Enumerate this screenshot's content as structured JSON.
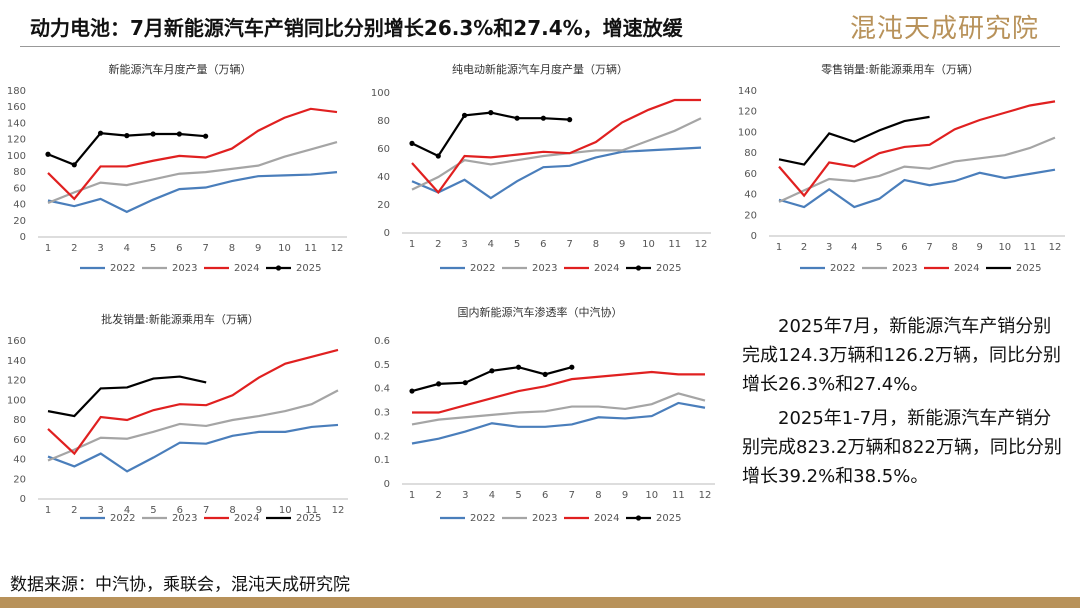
{
  "header": {
    "title": "动力电池：7月新能源汽车产销同比分别增长26.3%和27.4%，增速放缓",
    "logo": "混沌天成研究院"
  },
  "chart_data": [
    {
      "type": "line",
      "title": "新能源汽车月度产量（万辆）",
      "categories": [
        1,
        2,
        3,
        4,
        5,
        6,
        7,
        8,
        9,
        10,
        11,
        12
      ],
      "ylim": [
        0,
        180
      ],
      "yticks": [
        0,
        20,
        40,
        60,
        80,
        100,
        120,
        140,
        160,
        180
      ],
      "series": [
        {
          "name": "2022",
          "color": "#4a7ebb",
          "values": [
            45,
            38,
            47,
            31,
            46,
            59,
            61,
            69,
            75,
            76,
            77,
            80
          ]
        },
        {
          "name": "2023",
          "color": "#a5a5a5",
          "values": [
            42,
            55,
            67,
            64,
            71,
            78,
            80,
            84,
            88,
            99,
            108,
            117
          ]
        },
        {
          "name": "2024",
          "color": "#e02020",
          "values": [
            79,
            47,
            87,
            87,
            94,
            100,
            98,
            109,
            131,
            147,
            158,
            154
          ]
        },
        {
          "name": "2025",
          "color": "#000000",
          "markers": true,
          "values": [
            102,
            89,
            128,
            125,
            127,
            127,
            124.3,
            null,
            null,
            null,
            null,
            null
          ]
        }
      ]
    },
    {
      "type": "line",
      "title": "纯电动新能源汽车月度产量（万辆）",
      "categories": [
        1,
        2,
        3,
        4,
        5,
        6,
        7,
        8,
        9,
        10,
        11,
        12
      ],
      "ylim": [
        0,
        100
      ],
      "yticks": [
        0,
        20,
        40,
        60,
        80,
        100
      ],
      "series": [
        {
          "name": "2022",
          "color": "#4a7ebb",
          "values": [
            37,
            29,
            38,
            25,
            37,
            47,
            48,
            54,
            58,
            59,
            60,
            61
          ]
        },
        {
          "name": "2023",
          "color": "#a5a5a5",
          "values": [
            31,
            40,
            52,
            49,
            52,
            55,
            57,
            59,
            59,
            66,
            73,
            82
          ]
        },
        {
          "name": "2024",
          "color": "#e02020",
          "values": [
            50,
            29,
            55,
            54,
            56,
            58,
            57,
            65,
            79,
            88,
            95,
            95
          ]
        },
        {
          "name": "2025",
          "color": "#000000",
          "markers": true,
          "values": [
            64,
            55,
            84,
            86,
            82,
            82,
            81,
            null,
            null,
            null,
            null,
            null
          ]
        }
      ]
    },
    {
      "type": "line",
      "title": "零售销量:新能源乘用车（万辆）",
      "categories": [
        1,
        2,
        3,
        4,
        5,
        6,
        7,
        8,
        9,
        10,
        11,
        12
      ],
      "ylim": [
        0,
        140
      ],
      "yticks": [
        0,
        20,
        40,
        60,
        80,
        100,
        120,
        140
      ],
      "series": [
        {
          "name": "2022",
          "color": "#4a7ebb",
          "values": [
            35,
            28,
            45,
            28,
            36,
            54,
            49,
            53,
            61,
            56,
            60,
            64
          ]
        },
        {
          "name": "2023",
          "color": "#a5a5a5",
          "values": [
            33,
            44,
            55,
            53,
            58,
            67,
            65,
            72,
            75,
            78,
            85,
            95
          ]
        },
        {
          "name": "2024",
          "color": "#e02020",
          "values": [
            67,
            39,
            71,
            67,
            80,
            86,
            88,
            103,
            112,
            119,
            126,
            130
          ]
        },
        {
          "name": "2025",
          "color": "#000000",
          "values": [
            74,
            69,
            99,
            91,
            102,
            111,
            115,
            null,
            null,
            null,
            null,
            null
          ]
        }
      ]
    },
    {
      "type": "line",
      "title": "批发销量:新能源乘用车（万辆）",
      "categories": [
        1,
        2,
        3,
        4,
        5,
        6,
        7,
        8,
        9,
        10,
        11,
        12
      ],
      "ylim": [
        0,
        160
      ],
      "yticks": [
        0,
        20,
        40,
        60,
        80,
        100,
        120,
        140,
        160
      ],
      "series": [
        {
          "name": "2022",
          "color": "#4a7ebb",
          "values": [
            43,
            33,
            46,
            28,
            42,
            57,
            56,
            64,
            68,
            68,
            73,
            75
          ]
        },
        {
          "name": "2023",
          "color": "#a5a5a5",
          "values": [
            39,
            50,
            62,
            61,
            68,
            76,
            74,
            80,
            84,
            89,
            96,
            110
          ]
        },
        {
          "name": "2024",
          "color": "#e02020",
          "values": [
            71,
            46,
            83,
            80,
            90,
            96,
            95,
            105,
            123,
            137,
            144,
            151
          ]
        },
        {
          "name": "2025",
          "color": "#000000",
          "values": [
            89,
            84,
            112,
            113,
            122,
            124,
            118,
            null,
            null,
            null,
            null,
            null
          ]
        }
      ]
    },
    {
      "type": "line",
      "title": "国内新能源汽车渗透率（中汽协）",
      "categories": [
        1,
        2,
        3,
        4,
        5,
        6,
        7,
        8,
        9,
        10,
        11,
        12
      ],
      "ylim": [
        0,
        0.6
      ],
      "yticks": [
        0,
        0.1,
        0.2,
        0.3,
        0.4,
        0.5,
        0.6
      ],
      "series": [
        {
          "name": "2022",
          "color": "#4a7ebb",
          "values": [
            0.17,
            0.19,
            0.22,
            0.255,
            0.24,
            0.24,
            0.25,
            0.28,
            0.275,
            0.285,
            0.34,
            0.32
          ]
        },
        {
          "name": "2023",
          "color": "#a5a5a5",
          "values": [
            0.25,
            0.27,
            0.28,
            0.29,
            0.3,
            0.305,
            0.325,
            0.325,
            0.315,
            0.335,
            0.38,
            0.35
          ]
        },
        {
          "name": "2024",
          "color": "#e02020",
          "values": [
            0.3,
            0.3,
            0.33,
            0.36,
            0.39,
            0.41,
            0.44,
            0.45,
            0.46,
            0.47,
            0.46,
            0.46
          ]
        },
        {
          "name": "2025",
          "color": "#000000",
          "markers": true,
          "values": [
            0.39,
            0.42,
            0.425,
            0.475,
            0.49,
            0.46,
            0.49,
            null,
            null,
            null,
            null,
            null
          ]
        }
      ]
    }
  ],
  "paragraphs": [
    "2025年7月，新能源汽车产销分别完成124.3万辆和126.2万辆，同比分别增长26.3%和27.4%。",
    "2025年1-7月，新能源汽车产销分别完成823.2万辆和822万辆，同比分别增长39.2%和38.5%。"
  ],
  "source": "数据来源：中汽协，乘联会，混沌天成研究院"
}
